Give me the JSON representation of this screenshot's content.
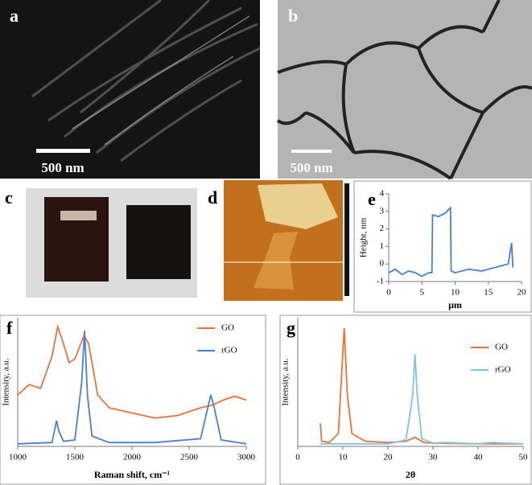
{
  "panels": {
    "a": {
      "label": "a",
      "scale_bar": "500 nm"
    },
    "b": {
      "label": "b",
      "scale_bar": "500 nm"
    },
    "c": {
      "label": "c"
    },
    "d": {
      "label": "d"
    }
  },
  "chart_data": [
    {
      "type": "line",
      "panel_label": "e",
      "xlabel": "μm",
      "ylabel": "Height, nm",
      "xlim": [
        0,
        20
      ],
      "xticks": [
        0,
        5,
        10,
        15,
        20
      ],
      "ylim": [
        -1,
        4
      ],
      "yticks": [
        -1,
        0,
        1,
        2,
        3,
        4
      ],
      "series": [
        {
          "name": null,
          "color": "#4a7fd6",
          "x": [
            0,
            1,
            2,
            3,
            4,
            5,
            6,
            6.5,
            6.6,
            7.5,
            8.5,
            9.3,
            9.4,
            10,
            12,
            14,
            16,
            17,
            18,
            18.5,
            18.7
          ],
          "values": [
            -0.5,
            -0.3,
            -0.6,
            -0.4,
            -0.5,
            -0.7,
            -0.5,
            -0.5,
            2.8,
            2.7,
            2.9,
            3.2,
            -0.4,
            -0.5,
            -0.3,
            -0.4,
            -0.2,
            -0.1,
            0.0,
            1.2,
            -0.2
          ]
        }
      ]
    },
    {
      "type": "line",
      "panel_label": "f",
      "xlabel": "Raman shift, cm⁻¹",
      "ylabel": "Intensity, a.u.",
      "xlim": [
        1000,
        3000
      ],
      "xticks": [
        1000,
        1500,
        2000,
        2500,
        3000
      ],
      "ylim": [
        0,
        100
      ],
      "legend": "upper right",
      "series": [
        {
          "name": "GO",
          "color": "#f0703a",
          "x": [
            1000,
            1100,
            1200,
            1300,
            1350,
            1400,
            1450,
            1500,
            1580,
            1620,
            1700,
            1800,
            2000,
            2200,
            2400,
            2600,
            2700,
            2800,
            2900,
            3000
          ],
          "values": [
            40,
            48,
            45,
            70,
            93,
            80,
            65,
            68,
            86,
            80,
            40,
            30,
            26,
            22,
            24,
            30,
            32,
            36,
            39,
            36
          ]
        },
        {
          "name": "rGO",
          "color": "#4a7fd6",
          "x": [
            1000,
            1300,
            1340,
            1360,
            1400,
            1500,
            1560,
            1585,
            1610,
            1650,
            1800,
            2200,
            2600,
            2650,
            2690,
            2720,
            2780,
            3000
          ],
          "values": [
            2,
            3,
            20,
            12,
            4,
            5,
            50,
            90,
            40,
            8,
            3,
            3,
            6,
            25,
            40,
            30,
            5,
            2
          ]
        }
      ]
    },
    {
      "type": "line",
      "panel_label": "g",
      "xlabel": "2θ",
      "ylabel": "Intensity, a.u.",
      "xlim": [
        0,
        50
      ],
      "xticks": [
        0,
        10,
        20,
        30,
        40,
        50
      ],
      "ylim": [
        0,
        100
      ],
      "legend": "upper right",
      "series": [
        {
          "name": "GO",
          "color": "#f0703a",
          "x": [
            5,
            5.3,
            7,
            9,
            10.3,
            11,
            12,
            15,
            20,
            24,
            26,
            28,
            30,
            40,
            50
          ],
          "values": [
            18,
            4,
            3,
            10,
            92,
            40,
            10,
            4,
            3,
            4,
            7,
            3,
            2.5,
            2,
            2
          ]
        },
        {
          "name": "rGO",
          "color": "#7fc4e8",
          "x": [
            5,
            20,
            24,
            25.5,
            26,
            26.5,
            27.5,
            30,
            33,
            40,
            43,
            50
          ],
          "values": [
            2,
            2,
            5,
            40,
            72,
            40,
            6,
            2.5,
            3,
            2,
            3,
            2
          ]
        }
      ]
    }
  ]
}
